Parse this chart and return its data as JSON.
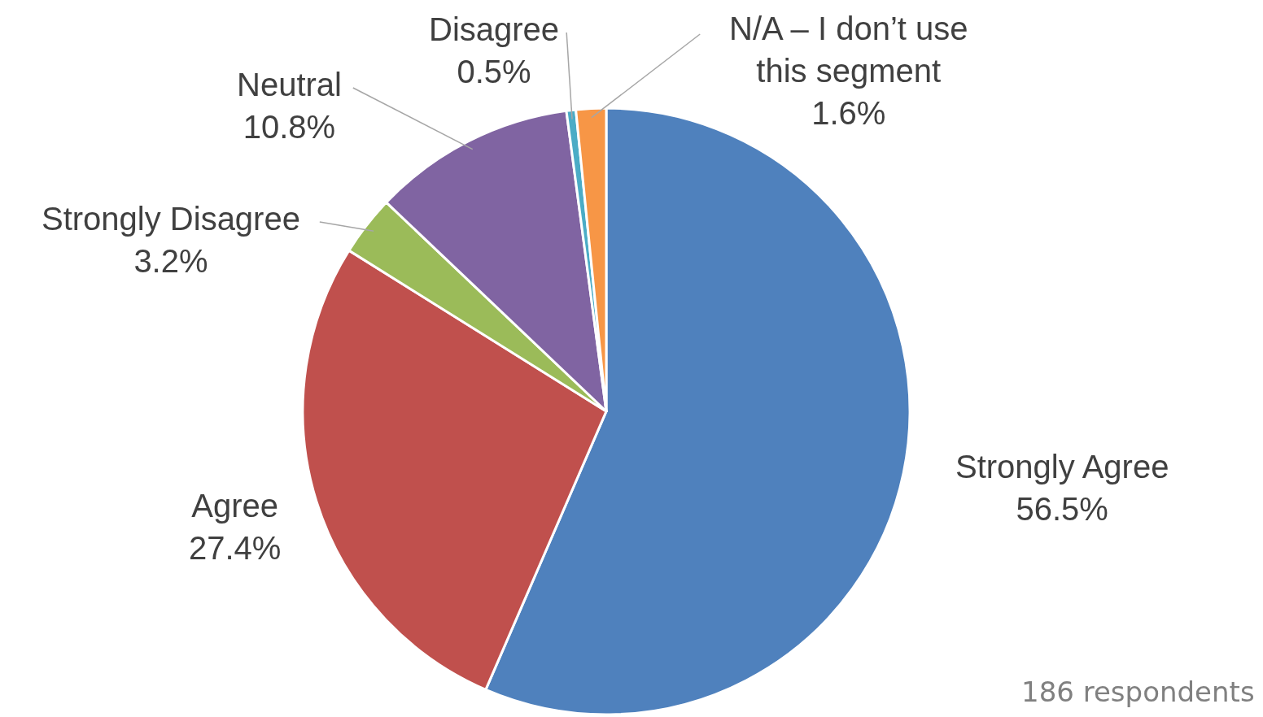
{
  "chart_data": {
    "type": "pie",
    "categories": [
      "Strongly Agree",
      "Agree",
      "Strongly Disagree",
      "Neutral",
      "Disagree",
      "N/A – I don’t use this segment"
    ],
    "values": [
      56.5,
      27.4,
      3.2,
      10.8,
      0.5,
      1.6
    ],
    "colors": [
      "#4f81bd",
      "#c0504d",
      "#9bbb59",
      "#8064a2",
      "#4bacc6",
      "#f79646"
    ],
    "value_labels": [
      "56.5%",
      "27.4%",
      "3.2%",
      "10.8%",
      "0.5%",
      "1.6%"
    ],
    "annotations": [
      "186 respondents"
    ],
    "legend": false
  }
}
